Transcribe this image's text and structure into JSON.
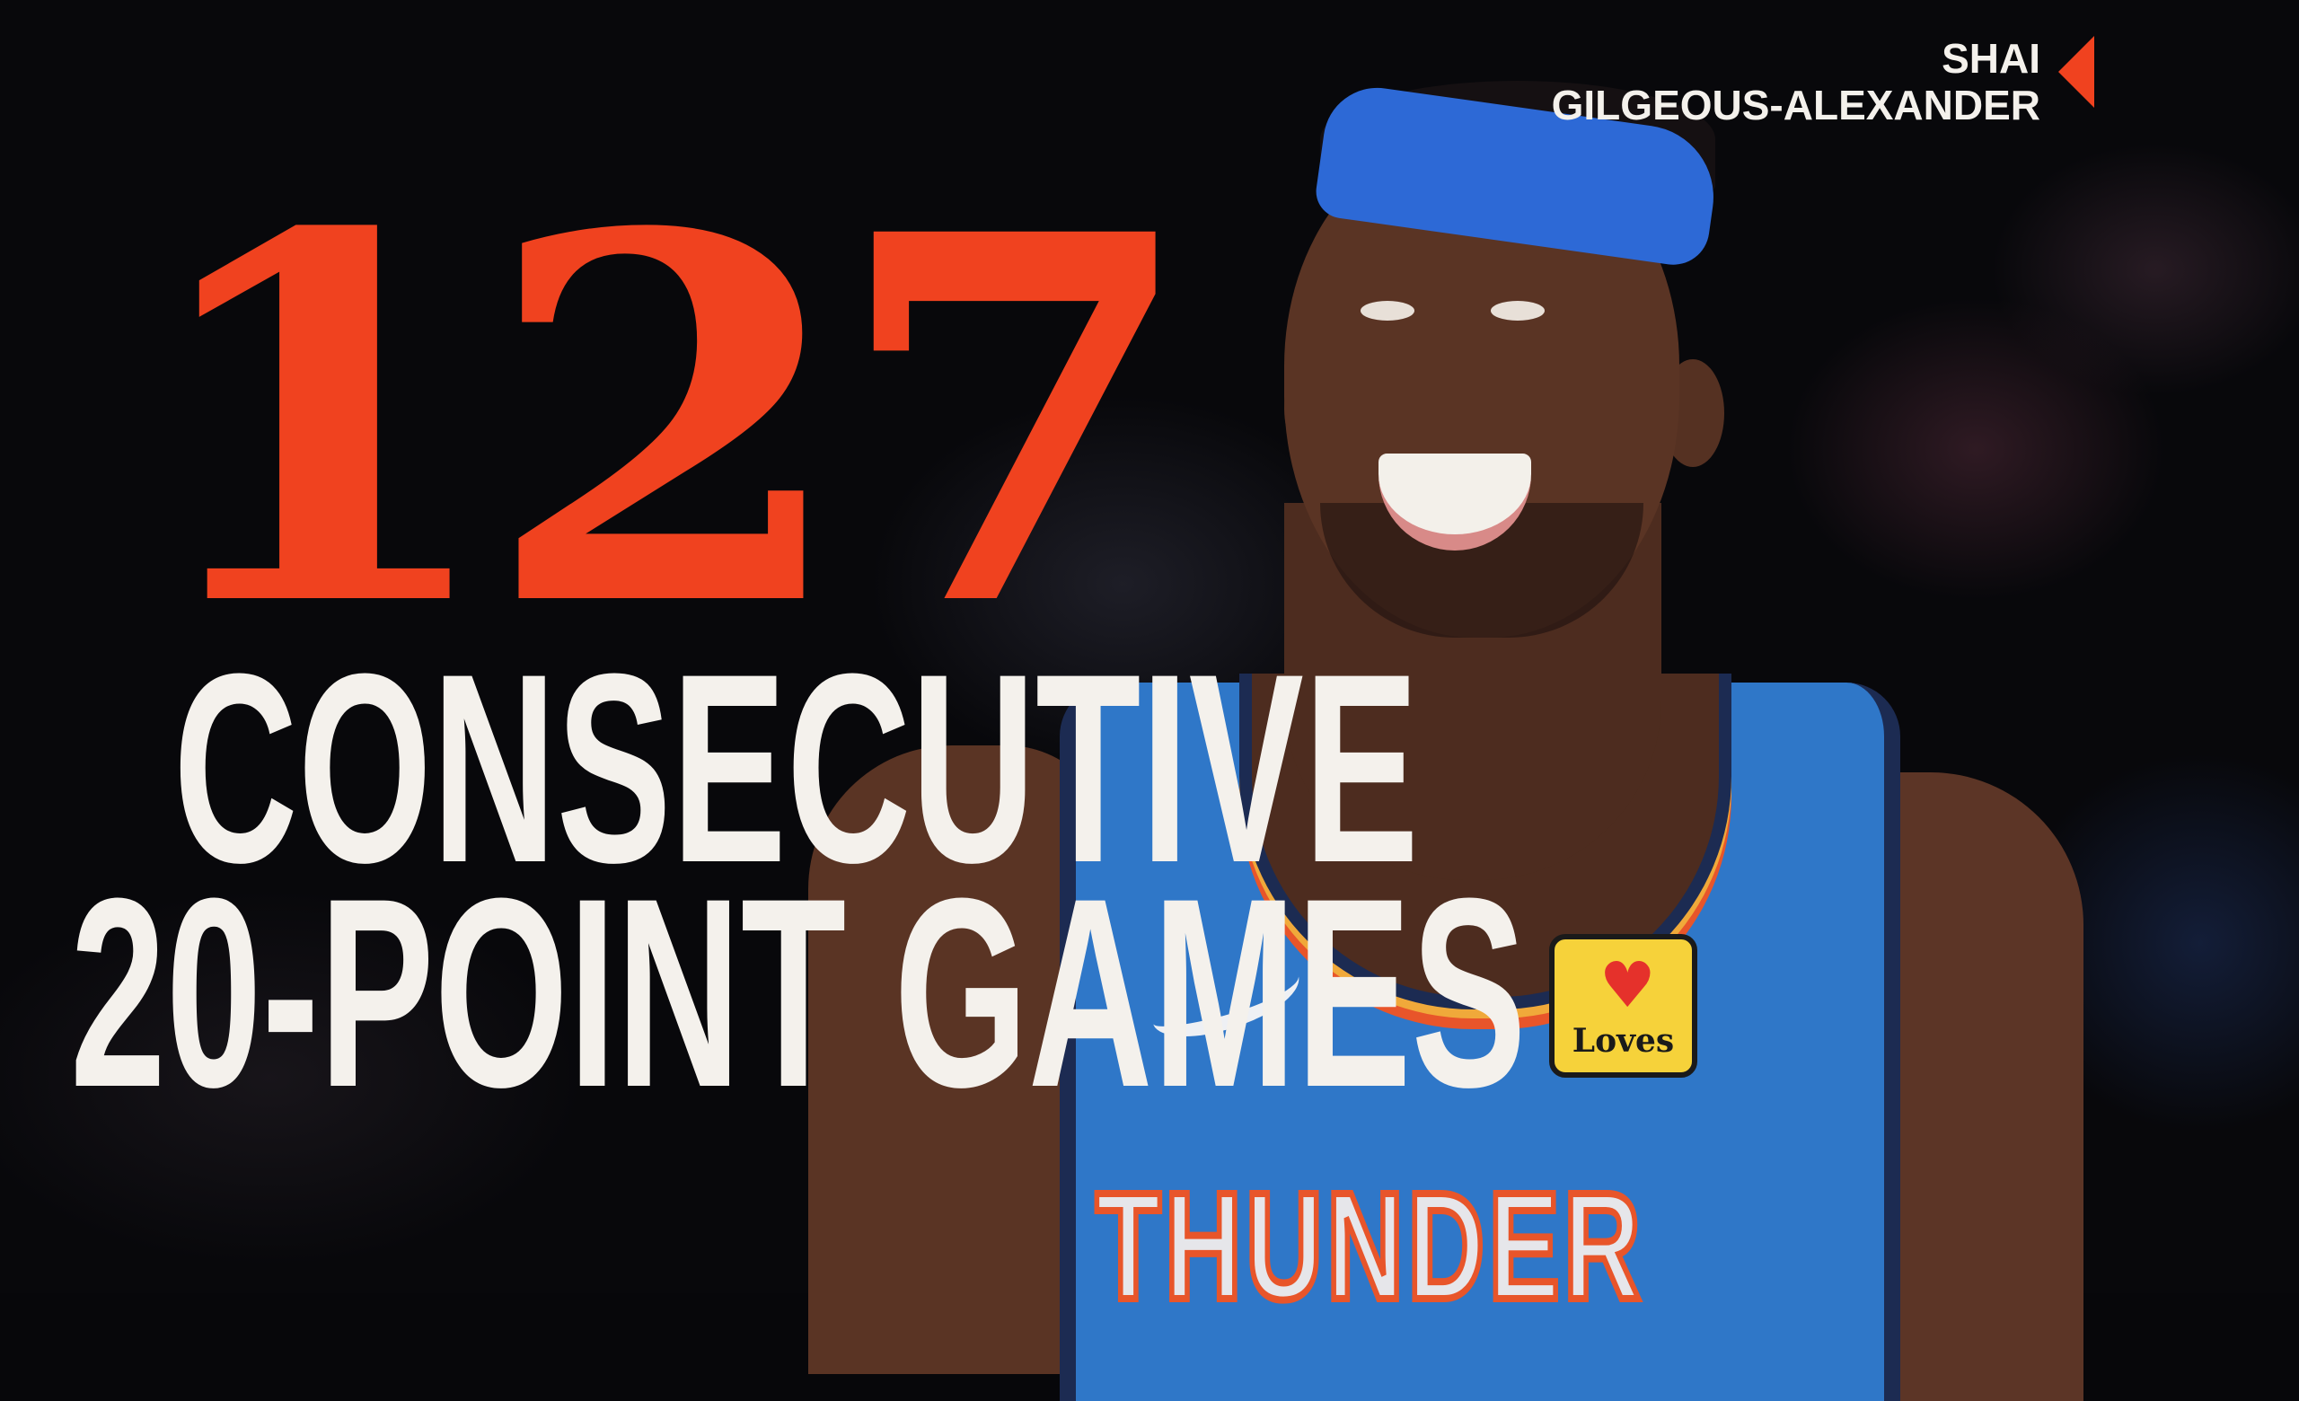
{
  "headline": {
    "number": "127",
    "line1": "CONSECUTIVE",
    "line2": "20-POINT GAMES"
  },
  "player": {
    "first_name": "SHAI",
    "last_name": "GILGEOUS-ALEXANDER",
    "jersey_text": "THUNDER",
    "sponsor_logo": "Loves"
  },
  "colors": {
    "accent": "#f0421f",
    "text": "#f4f1ec",
    "background": "#08080b",
    "jersey": "#2f77c8"
  },
  "icons": [
    "arrow-left-icon",
    "nike-swoosh-icon",
    "heart-icon"
  ]
}
